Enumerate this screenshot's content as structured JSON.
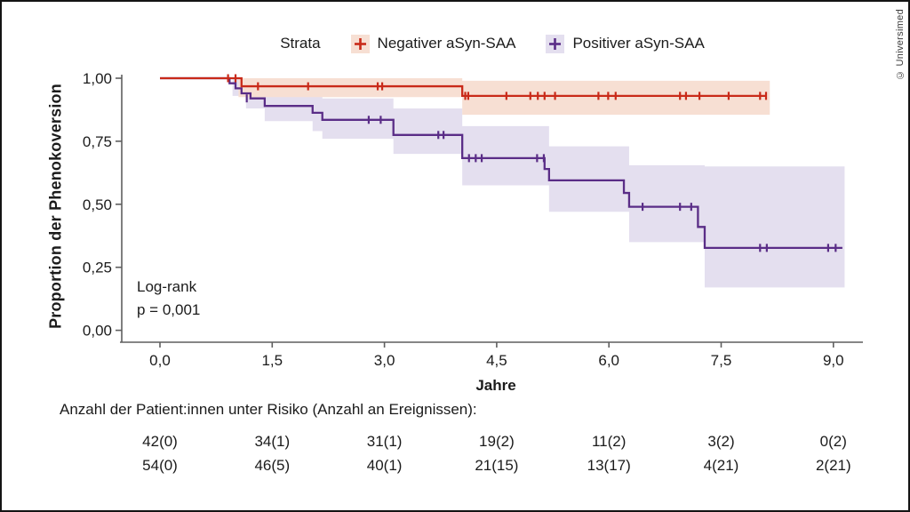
{
  "page": {
    "copyright": "© Universimed"
  },
  "chart_data": {
    "type": "line",
    "subtype": "kaplan-meier-step",
    "title": "",
    "xlabel": "Jahre",
    "ylabel": "Proportion der Phenokoversion",
    "xlim": [
      0,
      9.4
    ],
    "ylim": [
      0,
      1.0
    ],
    "grid": false,
    "x_ticks": [
      {
        "v": 0,
        "label": "0,0"
      },
      {
        "v": 1.5,
        "label": "1,5"
      },
      {
        "v": 3.0,
        "label": "3,0"
      },
      {
        "v": 4.5,
        "label": "4,5"
      },
      {
        "v": 6.0,
        "label": "6,0"
      },
      {
        "v": 7.5,
        "label": "7,5"
      },
      {
        "v": 9.0,
        "label": "9,0"
      }
    ],
    "y_ticks": [
      {
        "v": 0.0,
        "label": "0,00"
      },
      {
        "v": 0.25,
        "label": "0,25"
      },
      {
        "v": 0.5,
        "label": "0,50"
      },
      {
        "v": 0.75,
        "label": "0,75"
      },
      {
        "v": 1.0,
        "label": "1,00"
      }
    ],
    "legend": {
      "title": "Strata",
      "position": "top"
    },
    "annotation": [
      "Log-rank",
      "p = 0,001"
    ],
    "series": [
      {
        "name": "Positiver aSyn-SAA",
        "color": "#5A2D87",
        "ci_color": "#E4DFEF",
        "steps": [
          [
            0,
            1.0
          ],
          [
            0.93,
            0.98
          ],
          [
            1.01,
            0.96
          ],
          [
            1.09,
            0.94
          ],
          [
            1.21,
            0.92
          ],
          [
            1.4,
            0.89
          ],
          [
            2.04,
            0.863
          ],
          [
            2.17,
            0.835
          ],
          [
            3.12,
            0.775
          ],
          [
            4.04,
            0.683
          ],
          [
            5.14,
            0.64
          ],
          [
            5.2,
            0.595
          ],
          [
            6.2,
            0.545
          ],
          [
            6.27,
            0.49
          ],
          [
            7.19,
            0.41
          ],
          [
            7.28,
            0.327
          ]
        ],
        "end": 9.12,
        "censors": [
          [
            1.16,
            0.92
          ],
          [
            2.79,
            0.835
          ],
          [
            2.95,
            0.835
          ],
          [
            3.72,
            0.775
          ],
          [
            3.79,
            0.775
          ],
          [
            4.13,
            0.683
          ],
          [
            4.22,
            0.683
          ],
          [
            4.3,
            0.683
          ],
          [
            5.04,
            0.683
          ],
          [
            5.13,
            0.683
          ],
          [
            6.45,
            0.49
          ],
          [
            6.95,
            0.49
          ],
          [
            7.1,
            0.49
          ],
          [
            8.02,
            0.327
          ],
          [
            8.11,
            0.327
          ],
          [
            8.93,
            0.327
          ],
          [
            9.03,
            0.327
          ]
        ],
        "ci": [
          [
            0.97,
            1.0,
            0.93
          ],
          [
            1.15,
            0.99,
            0.88
          ],
          [
            1.4,
            0.96,
            0.83
          ],
          [
            2.04,
            0.935,
            0.79
          ],
          [
            2.17,
            0.92,
            0.76
          ],
          [
            3.12,
            0.88,
            0.7
          ],
          [
            4.04,
            0.81,
            0.575
          ],
          [
            5.2,
            0.73,
            0.47
          ],
          [
            6.27,
            0.655,
            0.35
          ],
          [
            7.28,
            0.65,
            0.17
          ]
        ],
        "ci_end": 9.15
      },
      {
        "name": "Negativer aSyn-SAA",
        "color": "#C92A19",
        "ci_color": "#F7DFD3",
        "steps": [
          [
            0,
            1.0
          ],
          [
            1.09,
            0.968
          ],
          [
            4.04,
            0.93
          ]
        ],
        "end": 8.11,
        "censors": [
          [
            0.91,
            1.0
          ],
          [
            1.01,
            1.0
          ],
          [
            1.31,
            0.968
          ],
          [
            1.98,
            0.968
          ],
          [
            2.91,
            0.968
          ],
          [
            2.97,
            0.968
          ],
          [
            4.08,
            0.93
          ],
          [
            4.12,
            0.93
          ],
          [
            4.63,
            0.93
          ],
          [
            4.95,
            0.93
          ],
          [
            5.05,
            0.93
          ],
          [
            5.14,
            0.93
          ],
          [
            5.28,
            0.93
          ],
          [
            5.86,
            0.93
          ],
          [
            5.99,
            0.93
          ],
          [
            6.09,
            0.93
          ],
          [
            6.95,
            0.93
          ],
          [
            7.03,
            0.93
          ],
          [
            7.21,
            0.93
          ],
          [
            7.6,
            0.93
          ],
          [
            8.02,
            0.93
          ],
          [
            8.1,
            0.93
          ]
        ],
        "ci": [
          [
            1.05,
            1.0,
            0.925
          ],
          [
            4.04,
            0.99,
            0.855
          ]
        ],
        "ci_end": 8.15
      }
    ]
  },
  "risk_table": {
    "title": "Anzahl der Patient:innen unter Risiko (Anzahl an Ereignissen):",
    "times": [
      0,
      1.5,
      3.0,
      4.5,
      6.0,
      7.5,
      9.0
    ],
    "rows": [
      [
        "42(0)",
        "34(1)",
        "31(1)",
        "19(2)",
        "11(2)",
        "3(2)",
        "0(2)"
      ],
      [
        "54(0)",
        "46(5)",
        "40(1)",
        "21(15)",
        "13(17)",
        "4(21)",
        "2(21)"
      ]
    ]
  }
}
